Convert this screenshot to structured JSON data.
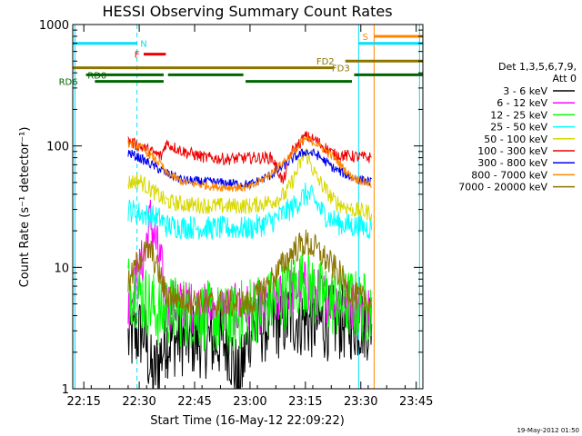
{
  "chart_data": {
    "type": "line",
    "title": "HESSI Observing Summary Count Rates",
    "xlabel": "Start Time (16-May-12 22:09:22)",
    "ylabel": "Count Rate (s⁻¹ detector⁻¹)",
    "y_scale": "log",
    "ylim": [
      1,
      1000
    ],
    "xlim_minutes": [
      22.2,
      23.78
    ],
    "grid": false,
    "x_ticks": [
      {
        "t": 22.25,
        "label": "22:15"
      },
      {
        "t": 22.5,
        "label": "22:30"
      },
      {
        "t": 22.75,
        "label": "22:45"
      },
      {
        "t": 23.0,
        "label": "23:00"
      },
      {
        "t": 23.25,
        "label": "23:15"
      },
      {
        "t": 23.5,
        "label": "23:30"
      },
      {
        "t": 23.75,
        "label": "23:45"
      }
    ],
    "y_ticks": [
      {
        "v": 1,
        "label": "1"
      },
      {
        "v": 10,
        "label": "10"
      },
      {
        "v": 100,
        "label": "100"
      },
      {
        "v": 1000,
        "label": "1000"
      }
    ],
    "legend": {
      "header": [
        "Det 1,3,5,6,7,9,",
        "Att 0"
      ],
      "placement": "right",
      "entries": [
        {
          "label": "3 - 6 keV",
          "color": "#000000"
        },
        {
          "label": "6 - 12 keV",
          "color": "#ff00ff"
        },
        {
          "label": "12 - 25 keV",
          "color": "#00ff00"
        },
        {
          "label": "25 - 50 keV",
          "color": "#00ffff"
        },
        {
          "label": "50 - 100 keV",
          "color": "#d8d800"
        },
        {
          "label": "100 - 300 keV",
          "color": "#ee0000"
        },
        {
          "label": "300 - 800 keV",
          "color": "#0000ee"
        },
        {
          "label": "800 - 7000 keV",
          "color": "#ff8800"
        },
        {
          "label": "7000 - 20000 keV",
          "color": "#8b7500"
        }
      ]
    },
    "segments": [
      [
        22.45,
        22.62
      ],
      [
        22.62,
        23.0
      ],
      [
        23.0,
        23.46
      ],
      [
        23.46,
        23.55
      ]
    ],
    "series": [
      {
        "name": "3 - 6 keV",
        "color": "#000000",
        "noise": 0.32,
        "points": [
          [
            22.45,
            2.5
          ],
          [
            22.52,
            3
          ],
          [
            22.56,
            1.2
          ],
          [
            22.62,
            2.5
          ],
          [
            22.7,
            2.6
          ],
          [
            22.8,
            2.5
          ],
          [
            22.9,
            2.4
          ],
          [
            22.95,
            1.1
          ],
          [
            23.0,
            3
          ],
          [
            23.1,
            3.5
          ],
          [
            23.2,
            3.8
          ],
          [
            23.3,
            3.5
          ],
          [
            23.4,
            3.5
          ],
          [
            23.46,
            3.5
          ],
          [
            23.55,
            3.5
          ]
        ]
      },
      {
        "name": "6 - 12 keV",
        "color": "#ff00ff",
        "noise": 0.22,
        "points": [
          [
            22.45,
            4.5
          ],
          [
            22.52,
            12
          ],
          [
            22.55,
            25
          ],
          [
            22.6,
            10
          ],
          [
            22.62,
            5
          ],
          [
            22.8,
            4.5
          ],
          [
            23.0,
            4.5
          ],
          [
            23.1,
            5
          ],
          [
            23.2,
            6.5
          ],
          [
            23.25,
            7
          ],
          [
            23.3,
            6
          ],
          [
            23.46,
            5
          ],
          [
            23.55,
            4.5
          ]
        ]
      },
      {
        "name": "12 - 25 keV",
        "color": "#00ff00",
        "noise": 0.3,
        "points": [
          [
            22.45,
            7
          ],
          [
            22.5,
            6
          ],
          [
            22.55,
            5
          ],
          [
            22.6,
            4
          ],
          [
            22.62,
            4.5
          ],
          [
            22.8,
            4
          ],
          [
            22.9,
            3.5
          ],
          [
            23.0,
            4.5
          ],
          [
            23.1,
            5
          ],
          [
            23.2,
            7
          ],
          [
            23.25,
            8
          ],
          [
            23.3,
            6
          ],
          [
            23.4,
            5
          ],
          [
            23.46,
            5
          ],
          [
            23.55,
            4.5
          ]
        ]
      },
      {
        "name": "25 - 50 keV",
        "color": "#00ffff",
        "noise": 0.1,
        "points": [
          [
            22.45,
            30
          ],
          [
            22.5,
            28
          ],
          [
            22.6,
            25
          ],
          [
            22.62,
            22
          ],
          [
            22.8,
            21
          ],
          [
            23.0,
            21
          ],
          [
            23.1,
            24
          ],
          [
            23.2,
            32
          ],
          [
            23.25,
            40
          ],
          [
            23.28,
            38
          ],
          [
            23.33,
            28
          ],
          [
            23.4,
            23
          ],
          [
            23.46,
            22
          ],
          [
            23.55,
            21
          ]
        ]
      },
      {
        "name": "50 - 100 keV",
        "color": "#d8d800",
        "noise": 0.07,
        "points": [
          [
            22.45,
            50
          ],
          [
            22.5,
            52
          ],
          [
            22.58,
            40
          ],
          [
            22.62,
            35
          ],
          [
            22.7,
            33
          ],
          [
            22.85,
            32
          ],
          [
            23.0,
            32
          ],
          [
            23.1,
            35
          ],
          [
            23.16,
            40
          ],
          [
            23.2,
            55
          ],
          [
            23.25,
            90
          ],
          [
            23.3,
            55
          ],
          [
            23.38,
            35
          ],
          [
            23.46,
            30
          ],
          [
            23.55,
            28
          ]
        ]
      },
      {
        "name": "100 - 300 keV",
        "color": "#ee0000",
        "noise": 0.05,
        "points": [
          [
            22.45,
            110
          ],
          [
            22.5,
            100
          ],
          [
            22.6,
            82
          ],
          [
            22.62,
            105
          ],
          [
            22.7,
            90
          ],
          [
            22.8,
            80
          ],
          [
            22.9,
            78
          ],
          [
            23.0,
            80
          ],
          [
            23.1,
            80
          ],
          [
            23.15,
            50
          ],
          [
            23.18,
            85
          ],
          [
            23.25,
            120
          ],
          [
            23.3,
            110
          ],
          [
            23.38,
            85
          ],
          [
            23.46,
            82
          ],
          [
            23.55,
            80
          ]
        ]
      },
      {
        "name": "300 - 800 keV",
        "color": "#0000ee",
        "noise": 0.04,
        "points": [
          [
            22.45,
            88
          ],
          [
            22.5,
            80
          ],
          [
            22.62,
            60
          ],
          [
            22.7,
            52
          ],
          [
            22.85,
            50
          ],
          [
            23.0,
            48
          ],
          [
            23.1,
            58
          ],
          [
            23.2,
            80
          ],
          [
            23.25,
            90
          ],
          [
            23.3,
            85
          ],
          [
            23.38,
            65
          ],
          [
            23.46,
            55
          ],
          [
            23.55,
            50
          ]
        ]
      },
      {
        "name": "800 - 7000 keV",
        "color": "#ff8800",
        "noise": 0.035,
        "points": [
          [
            22.45,
            105
          ],
          [
            22.5,
            100
          ],
          [
            22.6,
            70
          ],
          [
            22.62,
            60
          ],
          [
            22.7,
            50
          ],
          [
            22.85,
            46
          ],
          [
            23.0,
            45
          ],
          [
            23.1,
            60
          ],
          [
            23.2,
            90
          ],
          [
            23.25,
            115
          ],
          [
            23.3,
            105
          ],
          [
            23.38,
            80
          ],
          [
            23.46,
            55
          ],
          [
            23.55,
            48
          ]
        ]
      },
      {
        "name": "7000 - 20000 keV",
        "color": "#8b7500",
        "noise": 0.12,
        "points": [
          [
            22.45,
            7
          ],
          [
            22.5,
            12
          ],
          [
            22.55,
            14
          ],
          [
            22.6,
            8
          ],
          [
            22.62,
            6
          ],
          [
            22.8,
            5
          ],
          [
            23.0,
            5
          ],
          [
            23.1,
            8
          ],
          [
            23.2,
            14
          ],
          [
            23.25,
            16
          ],
          [
            23.3,
            14
          ],
          [
            23.4,
            9
          ],
          [
            23.46,
            6
          ],
          [
            23.55,
            5
          ]
        ]
      }
    ],
    "state_bars": [
      {
        "label": "N",
        "color": "#00e0ff",
        "y": 700,
        "t0": 22.2,
        "t1": 22.49,
        "label_at": 22.52
      },
      {
        "label": "F",
        "color": "#ee0000",
        "y": 570,
        "t0": 22.52,
        "t1": 22.62,
        "label_at": 22.49
      },
      {
        "label": "S",
        "color": "#ff8800",
        "y": 800,
        "t0": 23.56,
        "t1": 23.78,
        "label_at": 23.52
      },
      {
        "label": "",
        "color": "#00e0ff",
        "y": 700,
        "t0": 23.49,
        "t1": 23.78,
        "label_at": null
      },
      {
        "label": "FD2",
        "color": "#8b7500",
        "y": 500,
        "t0": 23.43,
        "t1": 23.78,
        "label_at": 23.34
      },
      {
        "label": "FD3",
        "color": "#8b7500",
        "y": 440,
        "t0": 22.2,
        "t1": 23.38,
        "label_at": 23.41
      },
      {
        "label": "RD0",
        "color": "#006400",
        "y": 385,
        "t0": 22.26,
        "t1": 22.61,
        "label_at": 22.31
      },
      {
        "label": "",
        "color": "#006400",
        "y": 385,
        "t0": 22.63,
        "t1": 22.97,
        "label_at": null
      },
      {
        "label": "",
        "color": "#006400",
        "y": 385,
        "t0": 23.47,
        "t1": 23.78,
        "label_at": null
      },
      {
        "label": "RD6",
        "color": "#006400",
        "y": 340,
        "t0": 22.3,
        "t1": 22.61,
        "label_at": 22.18
      },
      {
        "label": "",
        "color": "#006400",
        "y": 340,
        "t0": 22.98,
        "t1": 23.46,
        "label_at": null
      }
    ],
    "vlines": [
      {
        "t": 22.21,
        "color": "#00e0ff",
        "dashed": false
      },
      {
        "t": 22.49,
        "color": "#00e0ff",
        "dashed": true
      },
      {
        "t": 23.49,
        "color": "#00e0ff",
        "dashed": false
      },
      {
        "t": 23.56,
        "color": "#ff8800",
        "dashed": false
      },
      {
        "t": 23.765,
        "color": "#00e0ff",
        "dashed": false
      }
    ],
    "timestamp": "19-May-2012 01:50"
  }
}
